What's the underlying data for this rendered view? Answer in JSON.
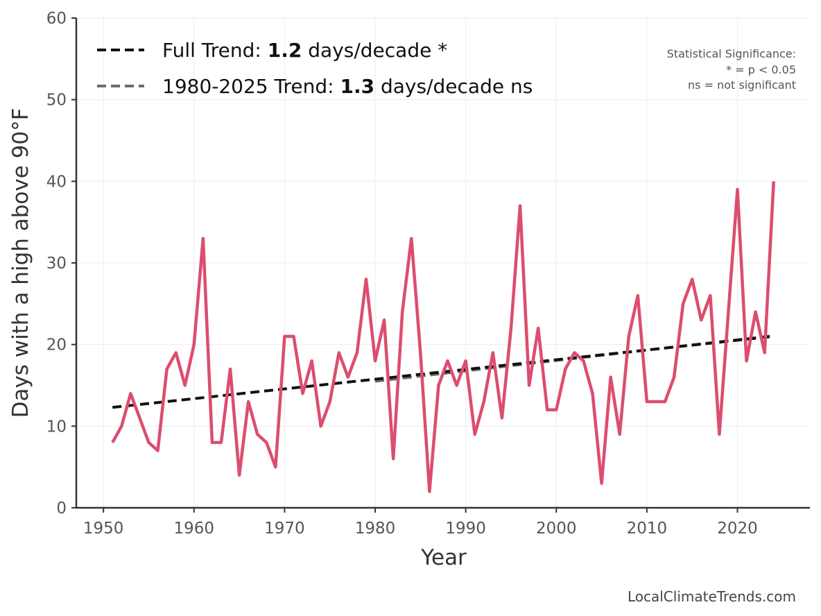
{
  "chart_data": {
    "type": "line",
    "xlabel": "Year",
    "ylabel": "Days with a high above 90°F",
    "xlim": [
      1947,
      2028
    ],
    "ylim": [
      0,
      60
    ],
    "x_ticks": [
      1950,
      1960,
      1970,
      1980,
      1990,
      2000,
      2010,
      2020
    ],
    "y_ticks": [
      0,
      10,
      20,
      30,
      40,
      50,
      60
    ],
    "grid": true,
    "series": [
      {
        "color": "#dc4d6e",
        "x": [
          1951,
          1952,
          1953,
          1954,
          1955,
          1956,
          1957,
          1958,
          1959,
          1960,
          1961,
          1962,
          1963,
          1964,
          1965,
          1966,
          1967,
          1968,
          1969,
          1970,
          1971,
          1972,
          1973,
          1974,
          1975,
          1976,
          1977,
          1978,
          1979,
          1980,
          1981,
          1982,
          1983,
          1984,
          1985,
          1986,
          1987,
          1988,
          1989,
          1990,
          1991,
          1992,
          1993,
          1994,
          1995,
          1996,
          1997,
          1998,
          1999,
          2000,
          2001,
          2002,
          2003,
          2004,
          2005,
          2006,
          2007,
          2008,
          2009,
          2010,
          2011,
          2012,
          2013,
          2014,
          2015,
          2016,
          2017,
          2018,
          2019,
          2020,
          2021,
          2022,
          2023,
          2024
        ],
        "values": [
          8,
          10,
          14,
          11,
          8,
          7,
          17,
          19,
          15,
          20,
          33,
          8,
          8,
          17,
          4,
          13,
          9,
          8,
          5,
          21,
          21,
          14,
          18,
          10,
          13,
          19,
          16,
          19,
          28,
          18,
          23,
          6,
          24,
          33,
          19,
          2,
          15,
          18,
          15,
          18,
          9,
          13,
          19,
          11,
          22,
          37,
          15,
          22,
          12,
          12,
          17,
          19,
          18,
          14,
          3,
          16,
          9,
          21,
          26,
          13,
          13,
          13,
          16,
          25,
          28,
          23,
          26,
          9,
          24,
          39,
          18,
          24,
          19,
          40
        ]
      }
    ],
    "trends": [
      {
        "label_prefix": "Full Trend: ",
        "label_value": "1.2",
        "label_suffix": " days/decade *",
        "color": "#111111",
        "x": [
          1951,
          2024
        ],
        "values": [
          12.3,
          21.0
        ]
      },
      {
        "label_prefix": "1980-2025 Trend: ",
        "label_value": "1.3",
        "label_suffix": " days/decade ns",
        "color": "#6b6b6b",
        "x": [
          1980,
          2024
        ],
        "values": [
          15.5,
          21.1
        ]
      }
    ],
    "legend_position": "top-left",
    "annotation": {
      "lines": [
        "Statistical Significance:",
        "* = p < 0.05",
        "ns = not significant"
      ],
      "position": "top-right"
    },
    "credit": "LocalClimateTrends.com"
  }
}
